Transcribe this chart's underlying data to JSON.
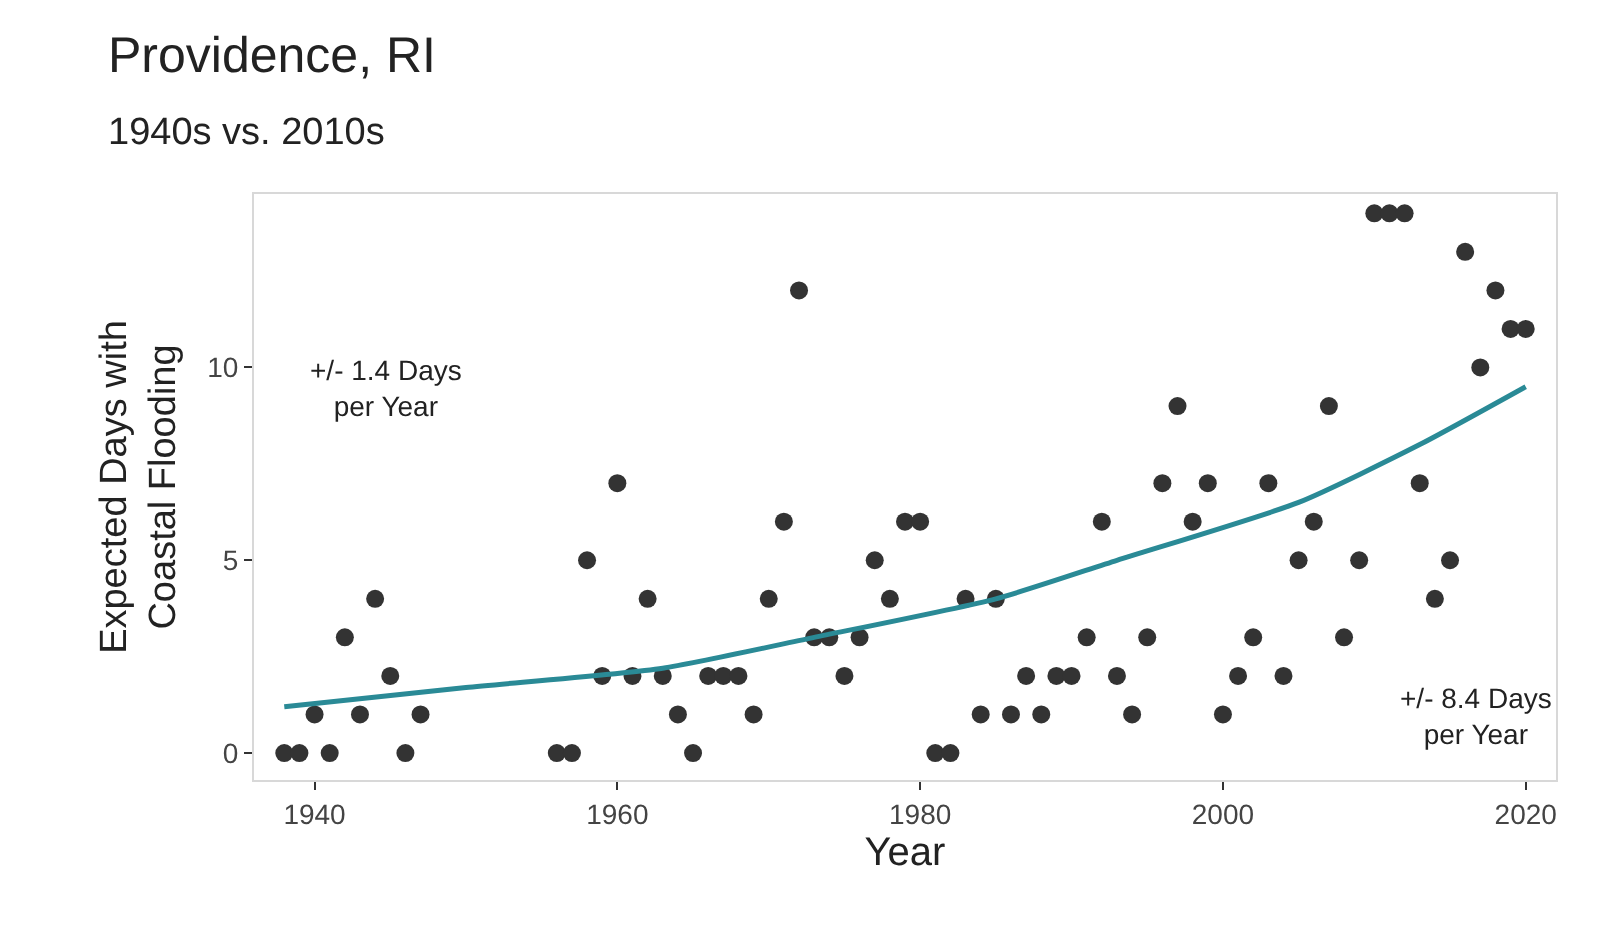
{
  "chart_data": {
    "type": "scatter",
    "title": "Providence, RI",
    "subtitle": "1940s vs. 2010s",
    "xlabel": "Year",
    "ylabel": "Expected Days with\nCoastal Flooding",
    "xlim": [
      1936,
      2022
    ],
    "xticks": [
      1940,
      1960,
      1980,
      2000,
      2020
    ],
    "ylim": [
      -0.7,
      14.5
    ],
    "yticks": [
      0,
      5,
      10
    ],
    "grid": false,
    "series": [
      {
        "marker": "circle",
        "color": "#333333",
        "x": [
          1938,
          1939,
          1940,
          1941,
          1942,
          1943,
          1944,
          1945,
          1946,
          1947,
          1956,
          1957,
          1958,
          1959,
          1960,
          1961,
          1962,
          1963,
          1964,
          1965,
          1966,
          1967,
          1968,
          1969,
          1970,
          1971,
          1972,
          1973,
          1974,
          1975,
          1976,
          1977,
          1978,
          1979,
          1980,
          1981,
          1982,
          1983,
          1984,
          1985,
          1986,
          1987,
          1988,
          1989,
          1990,
          1991,
          1992,
          1993,
          1994,
          1995,
          1996,
          1997,
          1998,
          1999,
          2000,
          2001,
          2002,
          2003,
          2004,
          2005,
          2006,
          2007,
          2008,
          2009,
          2010,
          2011,
          2012,
          2013,
          2014,
          2015,
          2016,
          2017,
          2018,
          2019,
          2020
        ],
        "values": [
          0,
          0,
          1,
          0,
          3,
          1,
          4,
          2,
          0,
          1,
          0,
          0,
          5,
          2,
          7,
          2,
          4,
          2,
          1,
          0,
          2,
          2,
          2,
          1,
          4,
          6,
          12,
          3,
          3,
          2,
          3,
          5,
          4,
          6,
          6,
          0,
          0,
          4,
          1,
          4,
          1,
          2,
          1,
          2,
          2,
          3,
          6,
          2,
          1,
          3,
          7,
          9,
          6,
          7,
          1,
          2,
          3,
          7,
          2,
          5,
          6,
          9,
          3,
          5,
          14,
          14,
          14,
          7,
          4,
          5,
          13,
          10,
          12,
          11,
          11
        ]
      },
      {
        "type": "line",
        "color": "#2a8a96",
        "line_style": "solid",
        "x": [
          1938,
          1950,
          1963,
          1973,
          1985,
          1993,
          2005,
          2013,
          2020
        ],
        "values": [
          1.2,
          1.7,
          2.2,
          3.0,
          4.0,
          5.0,
          6.5,
          8.0,
          9.5
        ]
      }
    ],
    "annotations": [
      "+/- 1.4 Days\nper Year",
      "+/- 8.4 Days\nper Year"
    ]
  }
}
